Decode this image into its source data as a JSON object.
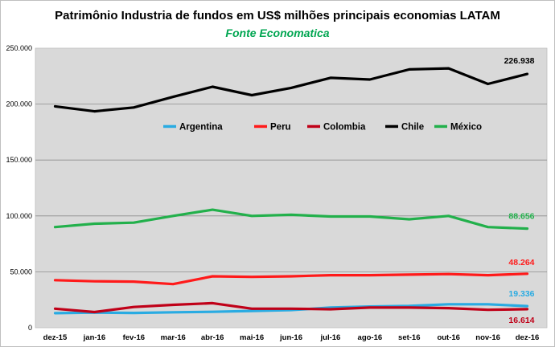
{
  "chart_data": {
    "type": "line",
    "title": "Patrimônio Industria de fundos em US$ milhões principais economias LATAM",
    "subtitle": "Fonte Economatica",
    "categories": [
      "dez-15",
      "jan-16",
      "fev-16",
      "mar-16",
      "abr-16",
      "mai-16",
      "jun-16",
      "jul-16",
      "ago-16",
      "set-16",
      "out-16",
      "nov-16",
      "dez-16"
    ],
    "y_ticks": [
      "0",
      "50.000",
      "100.000",
      "150.000",
      "200.000",
      "250.000"
    ],
    "ylim": [
      0,
      250000
    ],
    "grid": true,
    "legend_position": "center",
    "series": [
      {
        "name": "Argentina",
        "color": "#29abe2",
        "values": [
          13000,
          13500,
          13200,
          13800,
          14200,
          15000,
          15800,
          18000,
          19000,
          19500,
          21000,
          21000,
          19336
        ],
        "end_label": "19.336"
      },
      {
        "name": "Peru",
        "color": "#ff1a1a",
        "values": [
          42500,
          41500,
          41200,
          39000,
          46000,
          45500,
          46000,
          47000,
          47000,
          47500,
          48000,
          47000,
          48264
        ],
        "end_label": "48.264"
      },
      {
        "name": "Colombia",
        "color": "#c00018",
        "values": [
          17000,
          14000,
          18500,
          20500,
          22000,
          17000,
          17000,
          16500,
          18000,
          18000,
          17500,
          16000,
          16614
        ],
        "end_label": "16.614"
      },
      {
        "name": "Chile",
        "color": "#000000",
        "values": [
          198000,
          193500,
          197000,
          206500,
          215500,
          208000,
          214500,
          223500,
          222000,
          231000,
          232000,
          218000,
          226938
        ],
        "end_label": "226.938"
      },
      {
        "name": "México",
        "color": "#22b04b",
        "values": [
          90000,
          93000,
          94000,
          100000,
          105500,
          100000,
          101000,
          99500,
          99500,
          97000,
          100000,
          90000,
          88656
        ],
        "end_label": "88.656"
      }
    ]
  }
}
